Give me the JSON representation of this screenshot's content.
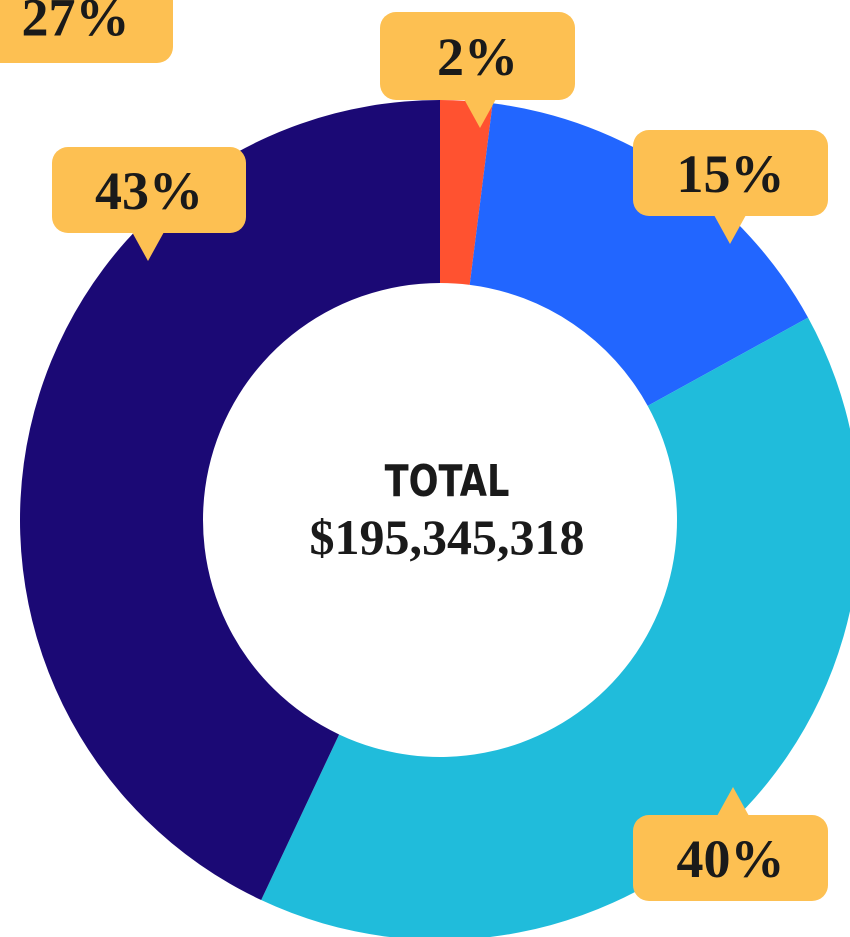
{
  "chart_data": {
    "type": "pie",
    "donut": true,
    "categories": [
      null,
      null,
      null,
      null
    ],
    "values": [
      2,
      15,
      40,
      43
    ],
    "value_labels": [
      "2%",
      "15%",
      "40%",
      "43%"
    ],
    "colors": [
      "#ff5230",
      "#2266ff",
      "#20bcdb",
      "#1b0975"
    ],
    "center_title": "TOTAL",
    "center_value": "$195,345,318",
    "annotations": [
      "27%"
    ]
  }
}
